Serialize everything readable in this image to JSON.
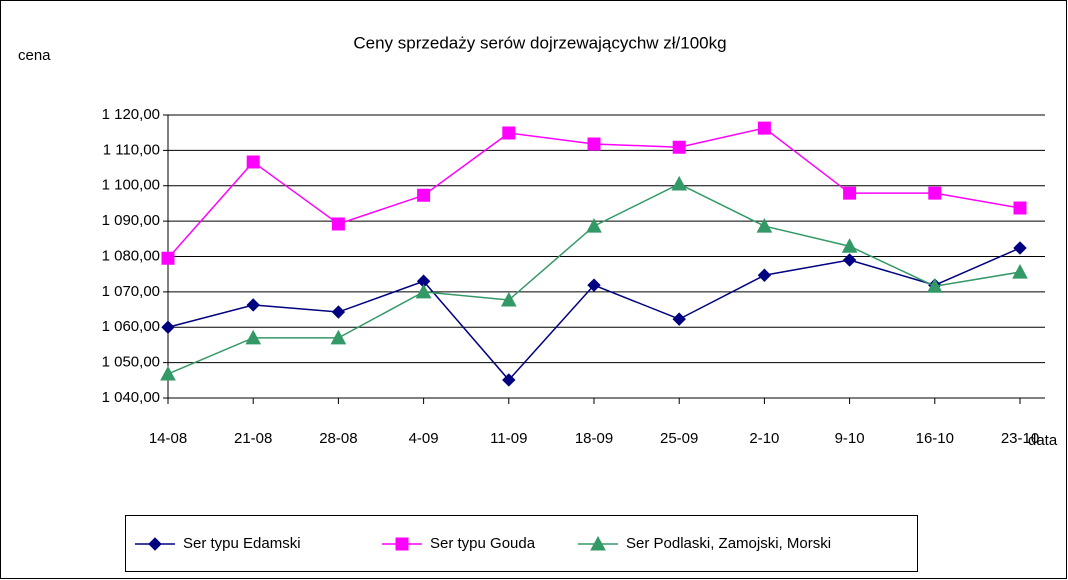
{
  "chart_data": {
    "type": "line",
    "title": "Ceny sprzedaży serów dojrzewającychw zł/100kg",
    "y_label": "cena",
    "x_label": "data",
    "categories": [
      "14-08",
      "21-08",
      "28-08",
      "4-09",
      "11-09",
      "18-09",
      "25-09",
      "2-10",
      "9-10",
      "16-10",
      "23-10"
    ],
    "series": [
      {
        "name": "Ser typu Edamski",
        "color": "#000080",
        "marker": "diamond",
        "values": [
          1060,
          1066.3,
          1064.3,
          1073,
          1045.1,
          1071.9,
          1062.3,
          1074.7,
          1079,
          1071.9,
          1082.4
        ]
      },
      {
        "name": "Ser typu Gouda",
        "color": "#ff00ff",
        "marker": "square",
        "values": [
          1079.5,
          1106.7,
          1089.2,
          1097.3,
          1114.9,
          1111.8,
          1110.9,
          1116.3,
          1097.9,
          1097.9,
          1093.7
        ]
      },
      {
        "name": "Ser Podlaski, Zamojski, Morski",
        "color": "#339966",
        "marker": "triangle",
        "values": [
          1046.8,
          1057,
          1057,
          1070,
          1067.7,
          1088.6,
          1100.5,
          1088.6,
          1082.9,
          1071.6,
          1075.6
        ]
      }
    ],
    "ylim": [
      1040,
      1120
    ],
    "yticks": [
      {
        "value": 1040,
        "label": "1 040,00"
      },
      {
        "value": 1050,
        "label": "1 050,00"
      },
      {
        "value": 1060,
        "label": "1 060,00"
      },
      {
        "value": 1070,
        "label": "1 070,00"
      },
      {
        "value": 1080,
        "label": "1 080,00"
      },
      {
        "value": 1090,
        "label": "1 090,00"
      },
      {
        "value": 1100,
        "label": "1 100,00"
      },
      {
        "value": 1110,
        "label": "1 110,00"
      },
      {
        "value": 1120,
        "label": "1 120,00"
      }
    ],
    "grid": true,
    "legend": "bottom"
  }
}
